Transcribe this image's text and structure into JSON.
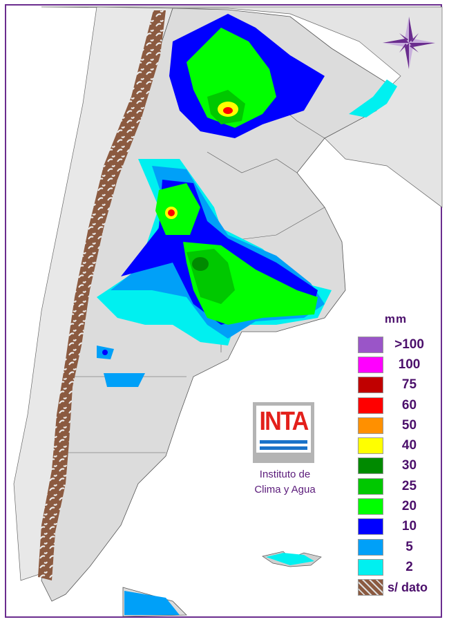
{
  "legend": {
    "unit": "mm",
    "items": [
      {
        "label": ">100",
        "color": "#9a55c8"
      },
      {
        "label": "100",
        "color": "#ff00ff"
      },
      {
        "label": "75",
        "color": "#c00000"
      },
      {
        "label": "60",
        "color": "#ff0000"
      },
      {
        "label": "50",
        "color": "#ff9000"
      },
      {
        "label": "40",
        "color": "#ffff00"
      },
      {
        "label": "30",
        "color": "#008a00"
      },
      {
        "label": "25",
        "color": "#00c800"
      },
      {
        "label": "20",
        "color": "#00ff00"
      },
      {
        "label": "10",
        "color": "#0000ff"
      },
      {
        "label": "5",
        "color": "#00a0f8"
      },
      {
        "label": "2",
        "color": "#00f0f0"
      },
      {
        "label": "s/ dato",
        "color": "#8b5a40"
      }
    ]
  },
  "logo": {
    "text": "INTA",
    "institute_line1": "Instituto de",
    "institute_line2": "Clima y Agua"
  },
  "compass": "compass-rose-icon"
}
